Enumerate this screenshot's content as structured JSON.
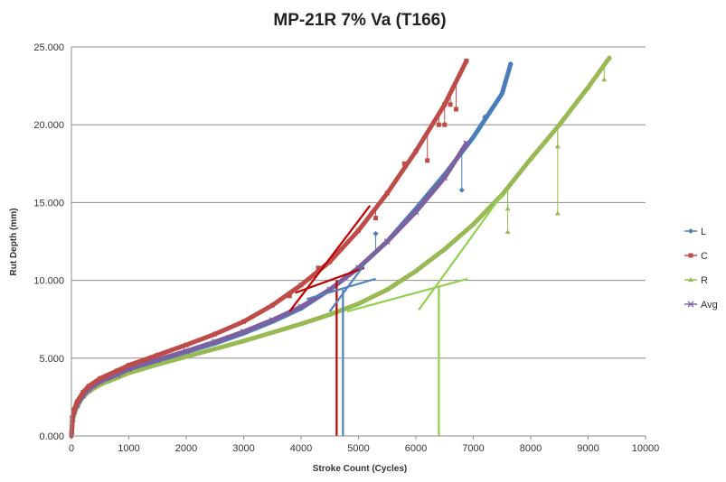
{
  "chart_data": {
    "type": "scatter",
    "title": "MP-21R 7% Va (T166)",
    "xlabel": "Stroke Count (Cycles)",
    "ylabel": "Rut Depth (mm)",
    "xlim": [
      0,
      10000
    ],
    "ylim": [
      0,
      25
    ],
    "xticks": [
      "0",
      "1000",
      "2000",
      "3000",
      "4000",
      "5000",
      "6000",
      "7000",
      "8000",
      "9000",
      "10000"
    ],
    "yticks": [
      "0.000",
      "5.000",
      "10.000",
      "15.000",
      "20.000",
      "25.000"
    ],
    "grid": "horizontal",
    "legend_position": "right",
    "series": [
      {
        "name": "L",
        "color": "#4a7ebb",
        "marker": "diamond",
        "x": [
          0,
          20,
          50,
          100,
          200,
          300,
          500,
          800,
          1000,
          1500,
          2000,
          2500,
          3000,
          3500,
          4000,
          4500,
          5000,
          5500,
          6000,
          6500,
          7000,
          7500,
          7650
        ],
        "y": [
          0,
          1.1,
          1.6,
          2.0,
          2.6,
          3.0,
          3.5,
          3.95,
          4.3,
          4.85,
          5.4,
          5.95,
          6.6,
          7.35,
          8.2,
          9.4,
          10.8,
          12.5,
          14.6,
          16.8,
          19.2,
          22.0,
          23.9
        ]
      },
      {
        "name": "C",
        "color": "#be4b48",
        "marker": "square",
        "x": [
          0,
          20,
          50,
          100,
          200,
          300,
          500,
          800,
          1000,
          1500,
          2000,
          2500,
          3000,
          3500,
          4000,
          4500,
          5000,
          5500,
          6000,
          6500,
          6880
        ],
        "y": [
          0,
          1.2,
          1.7,
          2.2,
          2.8,
          3.2,
          3.7,
          4.2,
          4.55,
          5.2,
          5.85,
          6.55,
          7.35,
          8.4,
          9.7,
          11.2,
          13.2,
          15.6,
          18.3,
          21.3,
          24.1
        ]
      },
      {
        "name": "R",
        "color": "#98b954",
        "marker": "triangle",
        "x": [
          0,
          20,
          50,
          100,
          200,
          300,
          500,
          800,
          1000,
          1500,
          2000,
          2500,
          3000,
          3500,
          4000,
          4500,
          5000,
          5500,
          6000,
          6500,
          7000,
          7500,
          8000,
          8500,
          9000,
          9370
        ],
        "y": [
          0,
          1.0,
          1.5,
          1.9,
          2.5,
          2.85,
          3.3,
          3.75,
          4.05,
          4.6,
          5.1,
          5.6,
          6.1,
          6.65,
          7.2,
          7.8,
          8.5,
          9.4,
          10.6,
          12.0,
          13.6,
          15.5,
          17.8,
          20.0,
          22.4,
          24.3
        ]
      },
      {
        "name": "Avg",
        "color": "#7d60a0",
        "marker": "x",
        "x": [
          0,
          20,
          50,
          100,
          200,
          300,
          500,
          800,
          1000,
          1500,
          2000,
          2500,
          3000,
          3500,
          4000,
          4500,
          5000,
          5500,
          6000,
          6500,
          6880
        ],
        "y": [
          0,
          1.1,
          1.6,
          2.0,
          2.6,
          3.0,
          3.5,
          3.95,
          4.3,
          4.9,
          5.45,
          6.05,
          6.7,
          7.45,
          8.3,
          9.4,
          10.8,
          12.5,
          14.4,
          16.6,
          18.8
        ]
      }
    ],
    "annotation_lines": [
      {
        "color": "#c00000",
        "x": [
          3800,
          5200
        ],
        "y": [
          8.0,
          14.8
        ]
      },
      {
        "color": "#c00000",
        "x": [
          3900,
          5100
        ],
        "y": [
          9.2,
          10.8
        ]
      },
      {
        "color": "#c00000",
        "x": [
          4620,
          4620
        ],
        "y": [
          10.0,
          0
        ]
      },
      {
        "color": "#4f81bd",
        "x": [
          4100,
          5300
        ],
        "y": [
          8.8,
          10.1
        ]
      },
      {
        "color": "#4f81bd",
        "x": [
          4500,
          5100
        ],
        "y": [
          8.0,
          11.0
        ]
      },
      {
        "color": "#4f81bd",
        "x": [
          4730,
          4730
        ],
        "y": [
          9.4,
          0
        ]
      },
      {
        "color": "#92d050",
        "x": [
          6050,
          7500
        ],
        "y": [
          8.1,
          15.5
        ]
      },
      {
        "color": "#92d050",
        "x": [
          4800,
          6900
        ],
        "y": [
          8.0,
          10.1
        ]
      },
      {
        "color": "#92d050",
        "x": [
          6400,
          6400
        ],
        "y": [
          9.6,
          0
        ]
      }
    ],
    "outliers": [
      {
        "series": "C",
        "x": [
          3800,
          4300,
          5300,
          5800,
          6200,
          6400,
          6500,
          6600,
          6700
        ],
        "y": [
          9.0,
          10.8,
          14.0,
          17.5,
          17.7,
          20.0,
          20.0,
          21.3,
          21.0
        ]
      },
      {
        "series": "L",
        "x": [
          5300,
          6800,
          7200
        ],
        "y": [
          13.0,
          15.8,
          20.5
        ]
      },
      {
        "series": "R",
        "x": [
          7600,
          7600,
          8470,
          8470,
          9280
        ],
        "y": [
          14.6,
          13.1,
          18.6,
          14.3,
          22.9
        ]
      }
    ]
  }
}
